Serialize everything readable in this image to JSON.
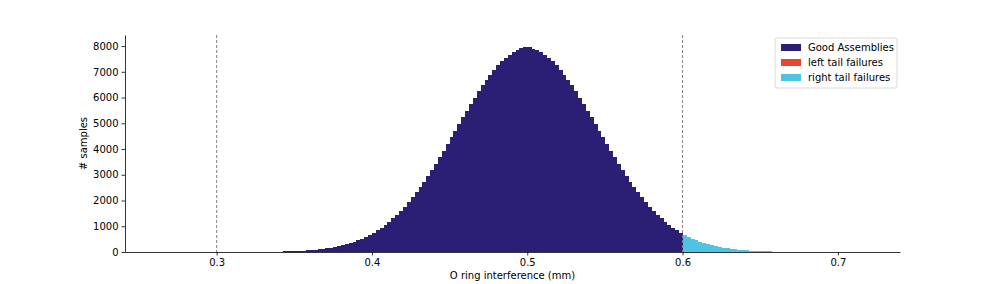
{
  "chart_data": {
    "type": "histogram",
    "x_label": "O ring interference (mm)",
    "y_label": "# samples",
    "xlim": [
      0.241,
      0.74
    ],
    "ylim": [
      0,
      8430
    ],
    "xticks": [
      0.3,
      0.4,
      0.5,
      0.6,
      0.7
    ],
    "yticks": [
      0,
      1000,
      2000,
      3000,
      4000,
      5000,
      6000,
      7000,
      8000
    ],
    "vlines": [
      0.3,
      0.6
    ],
    "legend": "upper right",
    "grid": false,
    "series": [
      {
        "name": "Good Assemblies",
        "color": "#2a1f74",
        "bins": [
          0.335,
          0.3375,
          0.34,
          0.3425,
          0.345,
          0.3475,
          0.35,
          0.3525,
          0.355,
          0.3575,
          0.36,
          0.3625,
          0.365,
          0.3675,
          0.37,
          0.3725,
          0.375,
          0.3775,
          0.38,
          0.3825,
          0.385,
          0.3875,
          0.39,
          0.3925,
          0.395,
          0.3975,
          0.4,
          0.4025,
          0.405,
          0.4075,
          0.41,
          0.4125,
          0.415,
          0.4175,
          0.42,
          0.4225,
          0.425,
          0.4275,
          0.43,
          0.4325,
          0.435,
          0.4375,
          0.44,
          0.4425,
          0.445,
          0.4475,
          0.45,
          0.4525,
          0.455,
          0.4575,
          0.46,
          0.4625,
          0.465,
          0.4675,
          0.47,
          0.4725,
          0.475,
          0.4775,
          0.48,
          0.4825,
          0.485,
          0.4875,
          0.49,
          0.4925,
          0.495,
          0.4975,
          0.5,
          0.5025,
          0.505,
          0.5075,
          0.51,
          0.5125,
          0.515,
          0.5175,
          0.52,
          0.5225,
          0.525,
          0.5275,
          0.53,
          0.5325,
          0.535,
          0.5375,
          0.54,
          0.5425,
          0.545,
          0.5475,
          0.55,
          0.5525,
          0.555,
          0.5575,
          0.56,
          0.5625,
          0.565,
          0.5675,
          0.57,
          0.5725,
          0.575,
          0.5775,
          0.58,
          0.5825,
          0.585,
          0.5875,
          0.59,
          0.5925,
          0.595,
          0.5975,
          0.6
        ],
        "values": [
          12,
          15,
          18,
          22,
          26,
          31,
          38,
          45,
          54,
          64,
          76,
          89,
          105,
          123,
          144,
          168,
          196,
          227,
          262,
          302,
          347,
          398,
          454,
          517,
          587,
          664,
          749,
          843,
          945,
          1057,
          1178,
          1310,
          1451,
          1603,
          1766,
          1939,
          2123,
          2318,
          2522,
          2736,
          2960,
          3193,
          3433,
          3679,
          3932,
          4189,
          4450,
          4712,
          4975,
          5237,
          5496,
          5751,
          6000,
          6240,
          6470,
          6689,
          6894,
          7084,
          7257,
          7412,
          7547,
          7662,
          7755,
          7840,
          7910,
          7950,
          7960,
          7900,
          7830,
          7755,
          7662,
          7547,
          7412,
          7257,
          7084,
          6894,
          6689,
          6470,
          6240,
          6000,
          5751,
          5496,
          5237,
          4975,
          4712,
          4450,
          4189,
          3932,
          3679,
          3433,
          3193,
          2960,
          2736,
          2522,
          2318,
          2123,
          1939,
          1766,
          1603,
          1451,
          1310,
          1178,
          1057,
          945,
          843,
          749
        ]
      },
      {
        "name": "left tail failures",
        "color": "#e8472e",
        "bins": [],
        "values": []
      },
      {
        "name": "right tail failures",
        "color": "#4dc4e4",
        "bins": [
          0.6,
          0.6025,
          0.605,
          0.6075,
          0.61,
          0.6125,
          0.615,
          0.6175,
          0.62,
          0.6225,
          0.625,
          0.6275,
          0.63,
          0.6325,
          0.635,
          0.6375,
          0.64,
          0.6425,
          0.645,
          0.6475,
          0.65,
          0.6525,
          0.655,
          0.6575,
          0.66,
          0.6625,
          0.665
        ],
        "values": [
          664,
          587,
          517,
          454,
          398,
          347,
          302,
          262,
          227,
          196,
          168,
          144,
          123,
          105,
          89,
          76,
          64,
          54,
          45,
          38,
          31,
          26,
          22,
          18,
          15,
          12
        ]
      }
    ]
  }
}
